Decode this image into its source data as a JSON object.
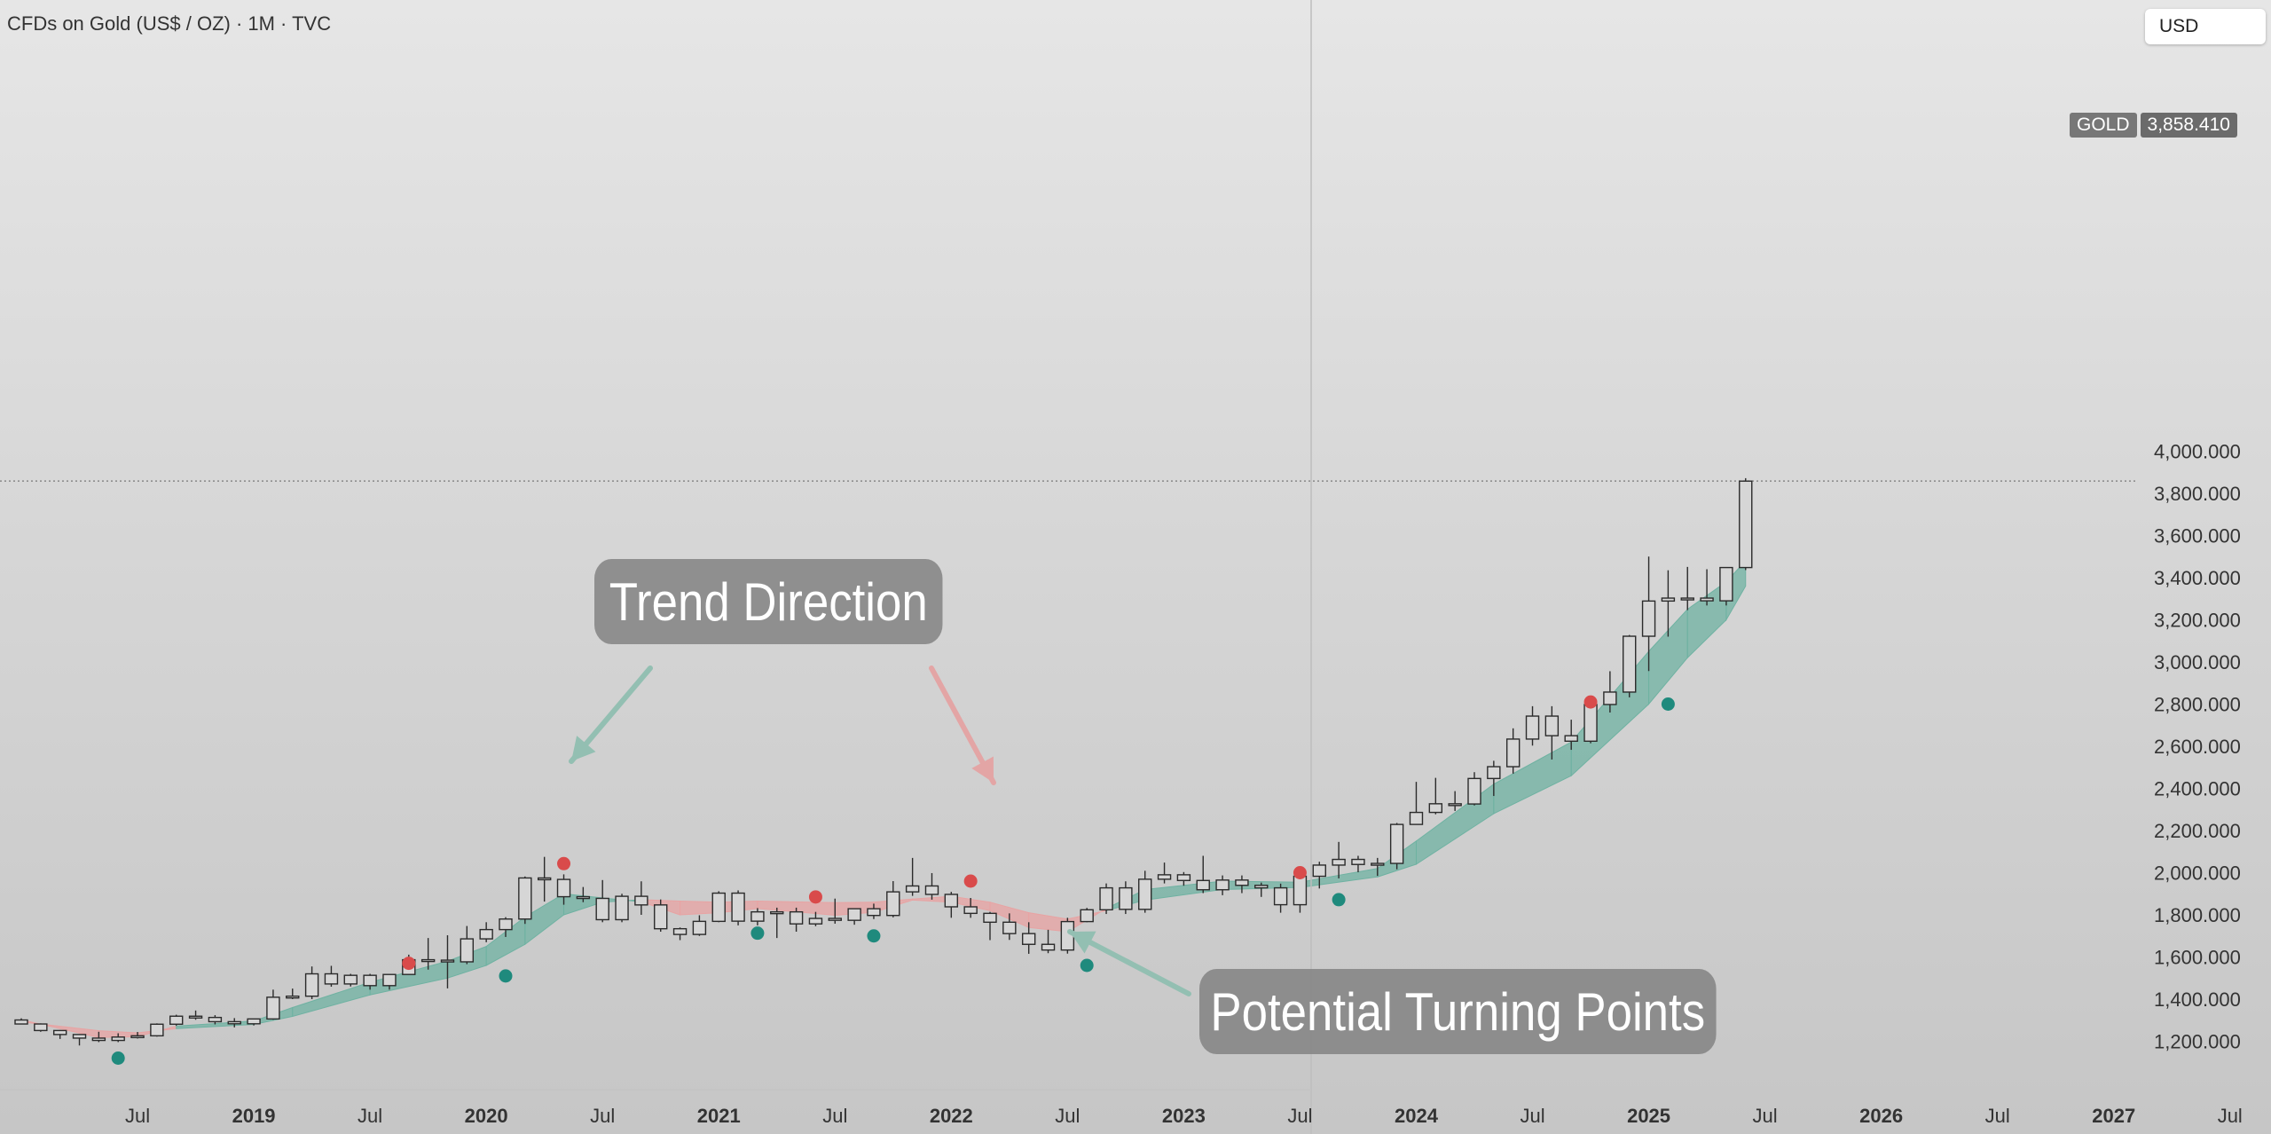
{
  "header": {
    "symbol_title": "CFDs on Gold (US$ / OZ) · 1M · TVC",
    "currency": "USD"
  },
  "price_tag": {
    "symbol": "GOLD",
    "value": "3,858.410"
  },
  "callouts": {
    "trend": "Trend Direction",
    "turning": "Potential Turning Points"
  },
  "colors": {
    "bull_ribbon": "#6fb2a2",
    "bear_ribbon": "#e8a3a3",
    "bull_dot": "#1f8a7d",
    "bear_dot": "#d94b4b",
    "arrow_green": "#93bfb2",
    "arrow_red": "#e3a5a5"
  },
  "chart_data": {
    "type": "candlestick",
    "title": "CFDs on Gold (US$ / OZ) · 1M · TVC",
    "timeframe": "1M",
    "ylim": [
      1080,
      4200
    ],
    "y_ticks": [
      1200,
      1400,
      1600,
      1800,
      2000,
      2200,
      2400,
      2600,
      2800,
      3000,
      3200,
      3400,
      3600,
      3800,
      4000
    ],
    "y_tick_labels": [
      "1,200.000",
      "1,400.000",
      "1,600.000",
      "1,800.000",
      "2,000.000",
      "2,200.000",
      "2,400.000",
      "2,600.000",
      "2,800.000",
      "3,000.000",
      "3,200.000",
      "3,400.000",
      "3,600.000",
      "3,800.000",
      "4,000.000"
    ],
    "x_ticks": [
      {
        "label": "Jul",
        "t": 6,
        "bold": false
      },
      {
        "label": "2019",
        "t": 12,
        "bold": true
      },
      {
        "label": "Jul",
        "t": 18,
        "bold": false
      },
      {
        "label": "2020",
        "t": 24,
        "bold": true
      },
      {
        "label": "Jul",
        "t": 30,
        "bold": false
      },
      {
        "label": "2021",
        "t": 36,
        "bold": true
      },
      {
        "label": "Jul",
        "t": 42,
        "bold": false
      },
      {
        "label": "2022",
        "t": 48,
        "bold": true
      },
      {
        "label": "Jul",
        "t": 54,
        "bold": false
      },
      {
        "label": "2023",
        "t": 60,
        "bold": true
      },
      {
        "label": "Jul",
        "t": 66,
        "bold": false
      },
      {
        "label": "2024",
        "t": 72,
        "bold": true
      },
      {
        "label": "Jul",
        "t": 78,
        "bold": false
      },
      {
        "label": "2025",
        "t": 84,
        "bold": true
      },
      {
        "label": "Jul",
        "t": 90,
        "bold": false
      },
      {
        "label": "2026",
        "t": 96,
        "bold": true
      },
      {
        "label": "Jul",
        "t": 102,
        "bold": false
      },
      {
        "label": "2027",
        "t": 108,
        "bold": true
      },
      {
        "label": "Jul",
        "t": 114,
        "bold": false
      }
    ],
    "last_price": 3858.41,
    "candles": [
      {
        "t": 0,
        "o": 1301,
        "h": 1309,
        "l": 1282,
        "c": 1282
      },
      {
        "t": 1,
        "o": 1282,
        "h": 1285,
        "l": 1245,
        "c": 1251
      },
      {
        "t": 2,
        "o": 1251,
        "h": 1253,
        "l": 1211,
        "c": 1232
      },
      {
        "t": 3,
        "o": 1232,
        "h": 1234,
        "l": 1180,
        "c": 1215
      },
      {
        "t": 4,
        "o": 1215,
        "h": 1245,
        "l": 1196,
        "c": 1204
      },
      {
        "t": 5,
        "o": 1204,
        "h": 1238,
        "l": 1196,
        "c": 1220
      },
      {
        "t": 6,
        "o": 1220,
        "h": 1244,
        "l": 1213,
        "c": 1226
      },
      {
        "t": 7,
        "o": 1226,
        "h": 1285,
        "l": 1222,
        "c": 1281
      },
      {
        "t": 8,
        "o": 1281,
        "h": 1326,
        "l": 1274,
        "c": 1319
      },
      {
        "t": 9,
        "o": 1319,
        "h": 1346,
        "l": 1302,
        "c": 1313
      },
      {
        "t": 10,
        "o": 1313,
        "h": 1324,
        "l": 1280,
        "c": 1293
      },
      {
        "t": 11,
        "o": 1293,
        "h": 1310,
        "l": 1266,
        "c": 1283
      },
      {
        "t": 12,
        "o": 1283,
        "h": 1301,
        "l": 1275,
        "c": 1306
      },
      {
        "t": 13,
        "o": 1306,
        "h": 1445,
        "l": 1302,
        "c": 1409
      },
      {
        "t": 14,
        "o": 1409,
        "h": 1450,
        "l": 1400,
        "c": 1414
      },
      {
        "t": 15,
        "o": 1414,
        "h": 1555,
        "l": 1400,
        "c": 1520
      },
      {
        "t": 16,
        "o": 1520,
        "h": 1558,
        "l": 1459,
        "c": 1472
      },
      {
        "t": 17,
        "o": 1472,
        "h": 1520,
        "l": 1460,
        "c": 1513
      },
      {
        "t": 18,
        "o": 1513,
        "h": 1520,
        "l": 1445,
        "c": 1464
      },
      {
        "t": 19,
        "o": 1464,
        "h": 1520,
        "l": 1445,
        "c": 1517
      },
      {
        "t": 20,
        "o": 1517,
        "h": 1611,
        "l": 1517,
        "c": 1587
      },
      {
        "t": 21,
        "o": 1587,
        "h": 1690,
        "l": 1540,
        "c": 1585
      },
      {
        "t": 22,
        "o": 1585,
        "h": 1703,
        "l": 1451,
        "c": 1577
      },
      {
        "t": 23,
        "o": 1577,
        "h": 1747,
        "l": 1566,
        "c": 1686
      },
      {
        "t": 24,
        "o": 1686,
        "h": 1765,
        "l": 1670,
        "c": 1730
      },
      {
        "t": 25,
        "o": 1730,
        "h": 1789,
        "l": 1695,
        "c": 1780
      },
      {
        "t": 26,
        "o": 1780,
        "h": 1982,
        "l": 1757,
        "c": 1975
      },
      {
        "t": 27,
        "o": 1975,
        "h": 2075,
        "l": 1863,
        "c": 1968
      },
      {
        "t": 28,
        "o": 1968,
        "h": 1992,
        "l": 1848,
        "c": 1886
      },
      {
        "t": 29,
        "o": 1886,
        "h": 1932,
        "l": 1860,
        "c": 1878
      },
      {
        "t": 30,
        "o": 1878,
        "h": 1965,
        "l": 1765,
        "c": 1777
      },
      {
        "t": 31,
        "o": 1777,
        "h": 1900,
        "l": 1765,
        "c": 1888
      },
      {
        "t": 32,
        "o": 1888,
        "h": 1959,
        "l": 1800,
        "c": 1847
      },
      {
        "t": 33,
        "o": 1847,
        "h": 1873,
        "l": 1720,
        "c": 1734
      },
      {
        "t": 34,
        "o": 1734,
        "h": 1740,
        "l": 1680,
        "c": 1707
      },
      {
        "t": 35,
        "o": 1707,
        "h": 1798,
        "l": 1700,
        "c": 1769
      },
      {
        "t": 36,
        "o": 1769,
        "h": 1912,
        "l": 1765,
        "c": 1903
      },
      {
        "t": 37,
        "o": 1903,
        "h": 1916,
        "l": 1750,
        "c": 1770
      },
      {
        "t": 38,
        "o": 1770,
        "h": 1832,
        "l": 1750,
        "c": 1814
      },
      {
        "t": 39,
        "o": 1814,
        "h": 1834,
        "l": 1690,
        "c": 1814
      },
      {
        "t": 40,
        "o": 1814,
        "h": 1834,
        "l": 1720,
        "c": 1757
      },
      {
        "t": 41,
        "o": 1757,
        "h": 1814,
        "l": 1746,
        "c": 1783
      },
      {
        "t": 42,
        "o": 1783,
        "h": 1877,
        "l": 1758,
        "c": 1774
      },
      {
        "t": 43,
        "o": 1774,
        "h": 1830,
        "l": 1753,
        "c": 1829
      },
      {
        "t": 44,
        "o": 1829,
        "h": 1853,
        "l": 1780,
        "c": 1797
      },
      {
        "t": 45,
        "o": 1797,
        "h": 1960,
        "l": 1788,
        "c": 1909
      },
      {
        "t": 46,
        "o": 1909,
        "h": 2070,
        "l": 1890,
        "c": 1937
      },
      {
        "t": 47,
        "o": 1937,
        "h": 1998,
        "l": 1872,
        "c": 1897
      },
      {
        "t": 48,
        "o": 1897,
        "h": 1909,
        "l": 1786,
        "c": 1838
      },
      {
        "t": 49,
        "o": 1838,
        "h": 1880,
        "l": 1786,
        "c": 1807
      },
      {
        "t": 50,
        "o": 1807,
        "h": 1814,
        "l": 1680,
        "c": 1765
      },
      {
        "t": 51,
        "o": 1765,
        "h": 1807,
        "l": 1681,
        "c": 1711
      },
      {
        "t": 52,
        "o": 1711,
        "h": 1765,
        "l": 1615,
        "c": 1660
      },
      {
        "t": 53,
        "o": 1660,
        "h": 1729,
        "l": 1618,
        "c": 1633
      },
      {
        "t": 54,
        "o": 1633,
        "h": 1786,
        "l": 1616,
        "c": 1768
      },
      {
        "t": 55,
        "o": 1768,
        "h": 1833,
        "l": 1765,
        "c": 1824
      },
      {
        "t": 56,
        "o": 1824,
        "h": 1949,
        "l": 1804,
        "c": 1928
      },
      {
        "t": 57,
        "o": 1928,
        "h": 1959,
        "l": 1804,
        "c": 1826
      },
      {
        "t": 58,
        "o": 1826,
        "h": 2009,
        "l": 1810,
        "c": 1969
      },
      {
        "t": 59,
        "o": 1969,
        "h": 2048,
        "l": 1949,
        "c": 1990
      },
      {
        "t": 60,
        "o": 1990,
        "h": 2003,
        "l": 1938,
        "c": 1963
      },
      {
        "t": 61,
        "o": 1963,
        "h": 2080,
        "l": 1903,
        "c": 1919
      },
      {
        "t": 62,
        "o": 1919,
        "h": 1987,
        "l": 1893,
        "c": 1965
      },
      {
        "t": 63,
        "o": 1965,
        "h": 1987,
        "l": 1903,
        "c": 1940
      },
      {
        "t": 64,
        "o": 1940,
        "h": 1953,
        "l": 1885,
        "c": 1928
      },
      {
        "t": 65,
        "o": 1928,
        "h": 1948,
        "l": 1810,
        "c": 1848
      },
      {
        "t": 66,
        "o": 1848,
        "h": 2009,
        "l": 1810,
        "c": 1983
      },
      {
        "t": 67,
        "o": 1983,
        "h": 2052,
        "l": 1925,
        "c": 2036
      },
      {
        "t": 68,
        "o": 2036,
        "h": 2146,
        "l": 1973,
        "c": 2063
      },
      {
        "t": 69,
        "o": 2063,
        "h": 2080,
        "l": 2002,
        "c": 2039
      },
      {
        "t": 70,
        "o": 2039,
        "h": 2070,
        "l": 1985,
        "c": 2044
      },
      {
        "t": 71,
        "o": 2044,
        "h": 2236,
        "l": 2016,
        "c": 2229
      },
      {
        "t": 72,
        "o": 2229,
        "h": 2431,
        "l": 2229,
        "c": 2286
      },
      {
        "t": 73,
        "o": 2286,
        "h": 2450,
        "l": 2277,
        "c": 2327
      },
      {
        "t": 74,
        "o": 2327,
        "h": 2387,
        "l": 2293,
        "c": 2326
      },
      {
        "t": 75,
        "o": 2326,
        "h": 2477,
        "l": 2319,
        "c": 2447
      },
      {
        "t": 76,
        "o": 2447,
        "h": 2531,
        "l": 2364,
        "c": 2503
      },
      {
        "t": 77,
        "o": 2503,
        "h": 2685,
        "l": 2470,
        "c": 2634
      },
      {
        "t": 78,
        "o": 2634,
        "h": 2790,
        "l": 2603,
        "c": 2743
      },
      {
        "t": 79,
        "o": 2743,
        "h": 2790,
        "l": 2537,
        "c": 2650
      },
      {
        "t": 80,
        "o": 2650,
        "h": 2726,
        "l": 2583,
        "c": 2624
      },
      {
        "t": 81,
        "o": 2624,
        "h": 2817,
        "l": 2614,
        "c": 2798
      },
      {
        "t": 82,
        "o": 2798,
        "h": 2956,
        "l": 2760,
        "c": 2857
      },
      {
        "t": 83,
        "o": 2857,
        "h": 3128,
        "l": 2832,
        "c": 3122
      },
      {
        "t": 84,
        "o": 3122,
        "h": 3500,
        "l": 2957,
        "c": 3289
      },
      {
        "t": 85,
        "o": 3289,
        "h": 3435,
        "l": 3120,
        "c": 3303
      },
      {
        "t": 86,
        "o": 3303,
        "h": 3451,
        "l": 3246,
        "c": 3303
      },
      {
        "t": 87,
        "o": 3303,
        "h": 3440,
        "l": 3268,
        "c": 3290
      },
      {
        "t": 88,
        "o": 3290,
        "h": 3440,
        "l": 3268,
        "c": 3448
      },
      {
        "t": 89,
        "o": 3448,
        "h": 3872,
        "l": 3436,
        "c": 3858
      }
    ],
    "ribbon": [
      {
        "t": 0,
        "fast": 1302,
        "slow": 1292
      },
      {
        "t": 4,
        "fast": 1218,
        "slow": 1250
      },
      {
        "t": 6,
        "fast": 1222,
        "slow": 1240
      },
      {
        "t": 8,
        "fast": 1272,
        "slow": 1260
      },
      {
        "t": 12,
        "fast": 1296,
        "slow": 1280
      },
      {
        "t": 14,
        "fast": 1360,
        "slow": 1318
      },
      {
        "t": 18,
        "fast": 1480,
        "slow": 1420
      },
      {
        "t": 22,
        "fast": 1580,
        "slow": 1500
      },
      {
        "t": 24,
        "fast": 1650,
        "slow": 1560
      },
      {
        "t": 26,
        "fast": 1790,
        "slow": 1660
      },
      {
        "t": 28,
        "fast": 1900,
        "slow": 1800
      },
      {
        "t": 30,
        "fast": 1880,
        "slow": 1860
      },
      {
        "t": 32,
        "fast": 1862,
        "slow": 1872
      },
      {
        "t": 34,
        "fast": 1800,
        "slow": 1865
      },
      {
        "t": 36,
        "fast": 1810,
        "slow": 1860
      },
      {
        "t": 38,
        "fast": 1830,
        "slow": 1865
      },
      {
        "t": 42,
        "fast": 1798,
        "slow": 1858
      },
      {
        "t": 44,
        "fast": 1812,
        "slow": 1860
      },
      {
        "t": 46,
        "fast": 1870,
        "slow": 1875
      },
      {
        "t": 48,
        "fast": 1860,
        "slow": 1888
      },
      {
        "t": 50,
        "fast": 1820,
        "slow": 1860
      },
      {
        "t": 52,
        "fast": 1740,
        "slow": 1810
      },
      {
        "t": 54,
        "fast": 1720,
        "slow": 1780
      },
      {
        "t": 56,
        "fast": 1830,
        "slow": 1820
      },
      {
        "t": 58,
        "fast": 1920,
        "slow": 1870
      },
      {
        "t": 62,
        "fast": 1960,
        "slow": 1920
      },
      {
        "t": 66,
        "fast": 1955,
        "slow": 1930
      },
      {
        "t": 70,
        "fast": 2020,
        "slow": 1980
      },
      {
        "t": 72,
        "fast": 2150,
        "slow": 2040
      },
      {
        "t": 76,
        "fast": 2420,
        "slow": 2280
      },
      {
        "t": 80,
        "fast": 2620,
        "slow": 2460
      },
      {
        "t": 84,
        "fast": 3050,
        "slow": 2800
      },
      {
        "t": 86,
        "fast": 3250,
        "slow": 3020
      },
      {
        "t": 88,
        "fast": 3380,
        "slow": 3200
      },
      {
        "t": 89,
        "fast": 3480,
        "slow": 3360
      }
    ],
    "signals": [
      {
        "t": 5,
        "type": "bull",
        "price": 1120
      },
      {
        "t": 20,
        "type": "bear",
        "price": 1570
      },
      {
        "t": 25,
        "type": "bull",
        "price": 1510
      },
      {
        "t": 28,
        "type": "bear",
        "price": 2043
      },
      {
        "t": 38,
        "type": "bull",
        "price": 1713
      },
      {
        "t": 41,
        "type": "bear",
        "price": 1885
      },
      {
        "t": 44,
        "type": "bull",
        "price": 1700
      },
      {
        "t": 49,
        "type": "bear",
        "price": 1960
      },
      {
        "t": 55,
        "type": "bull",
        "price": 1560
      },
      {
        "t": 66,
        "type": "bear",
        "price": 2000
      },
      {
        "t": 68,
        "type": "bull",
        "price": 1872
      },
      {
        "t": 81,
        "type": "bear",
        "price": 2810
      },
      {
        "t": 85,
        "type": "bull",
        "price": 2800
      }
    ]
  }
}
